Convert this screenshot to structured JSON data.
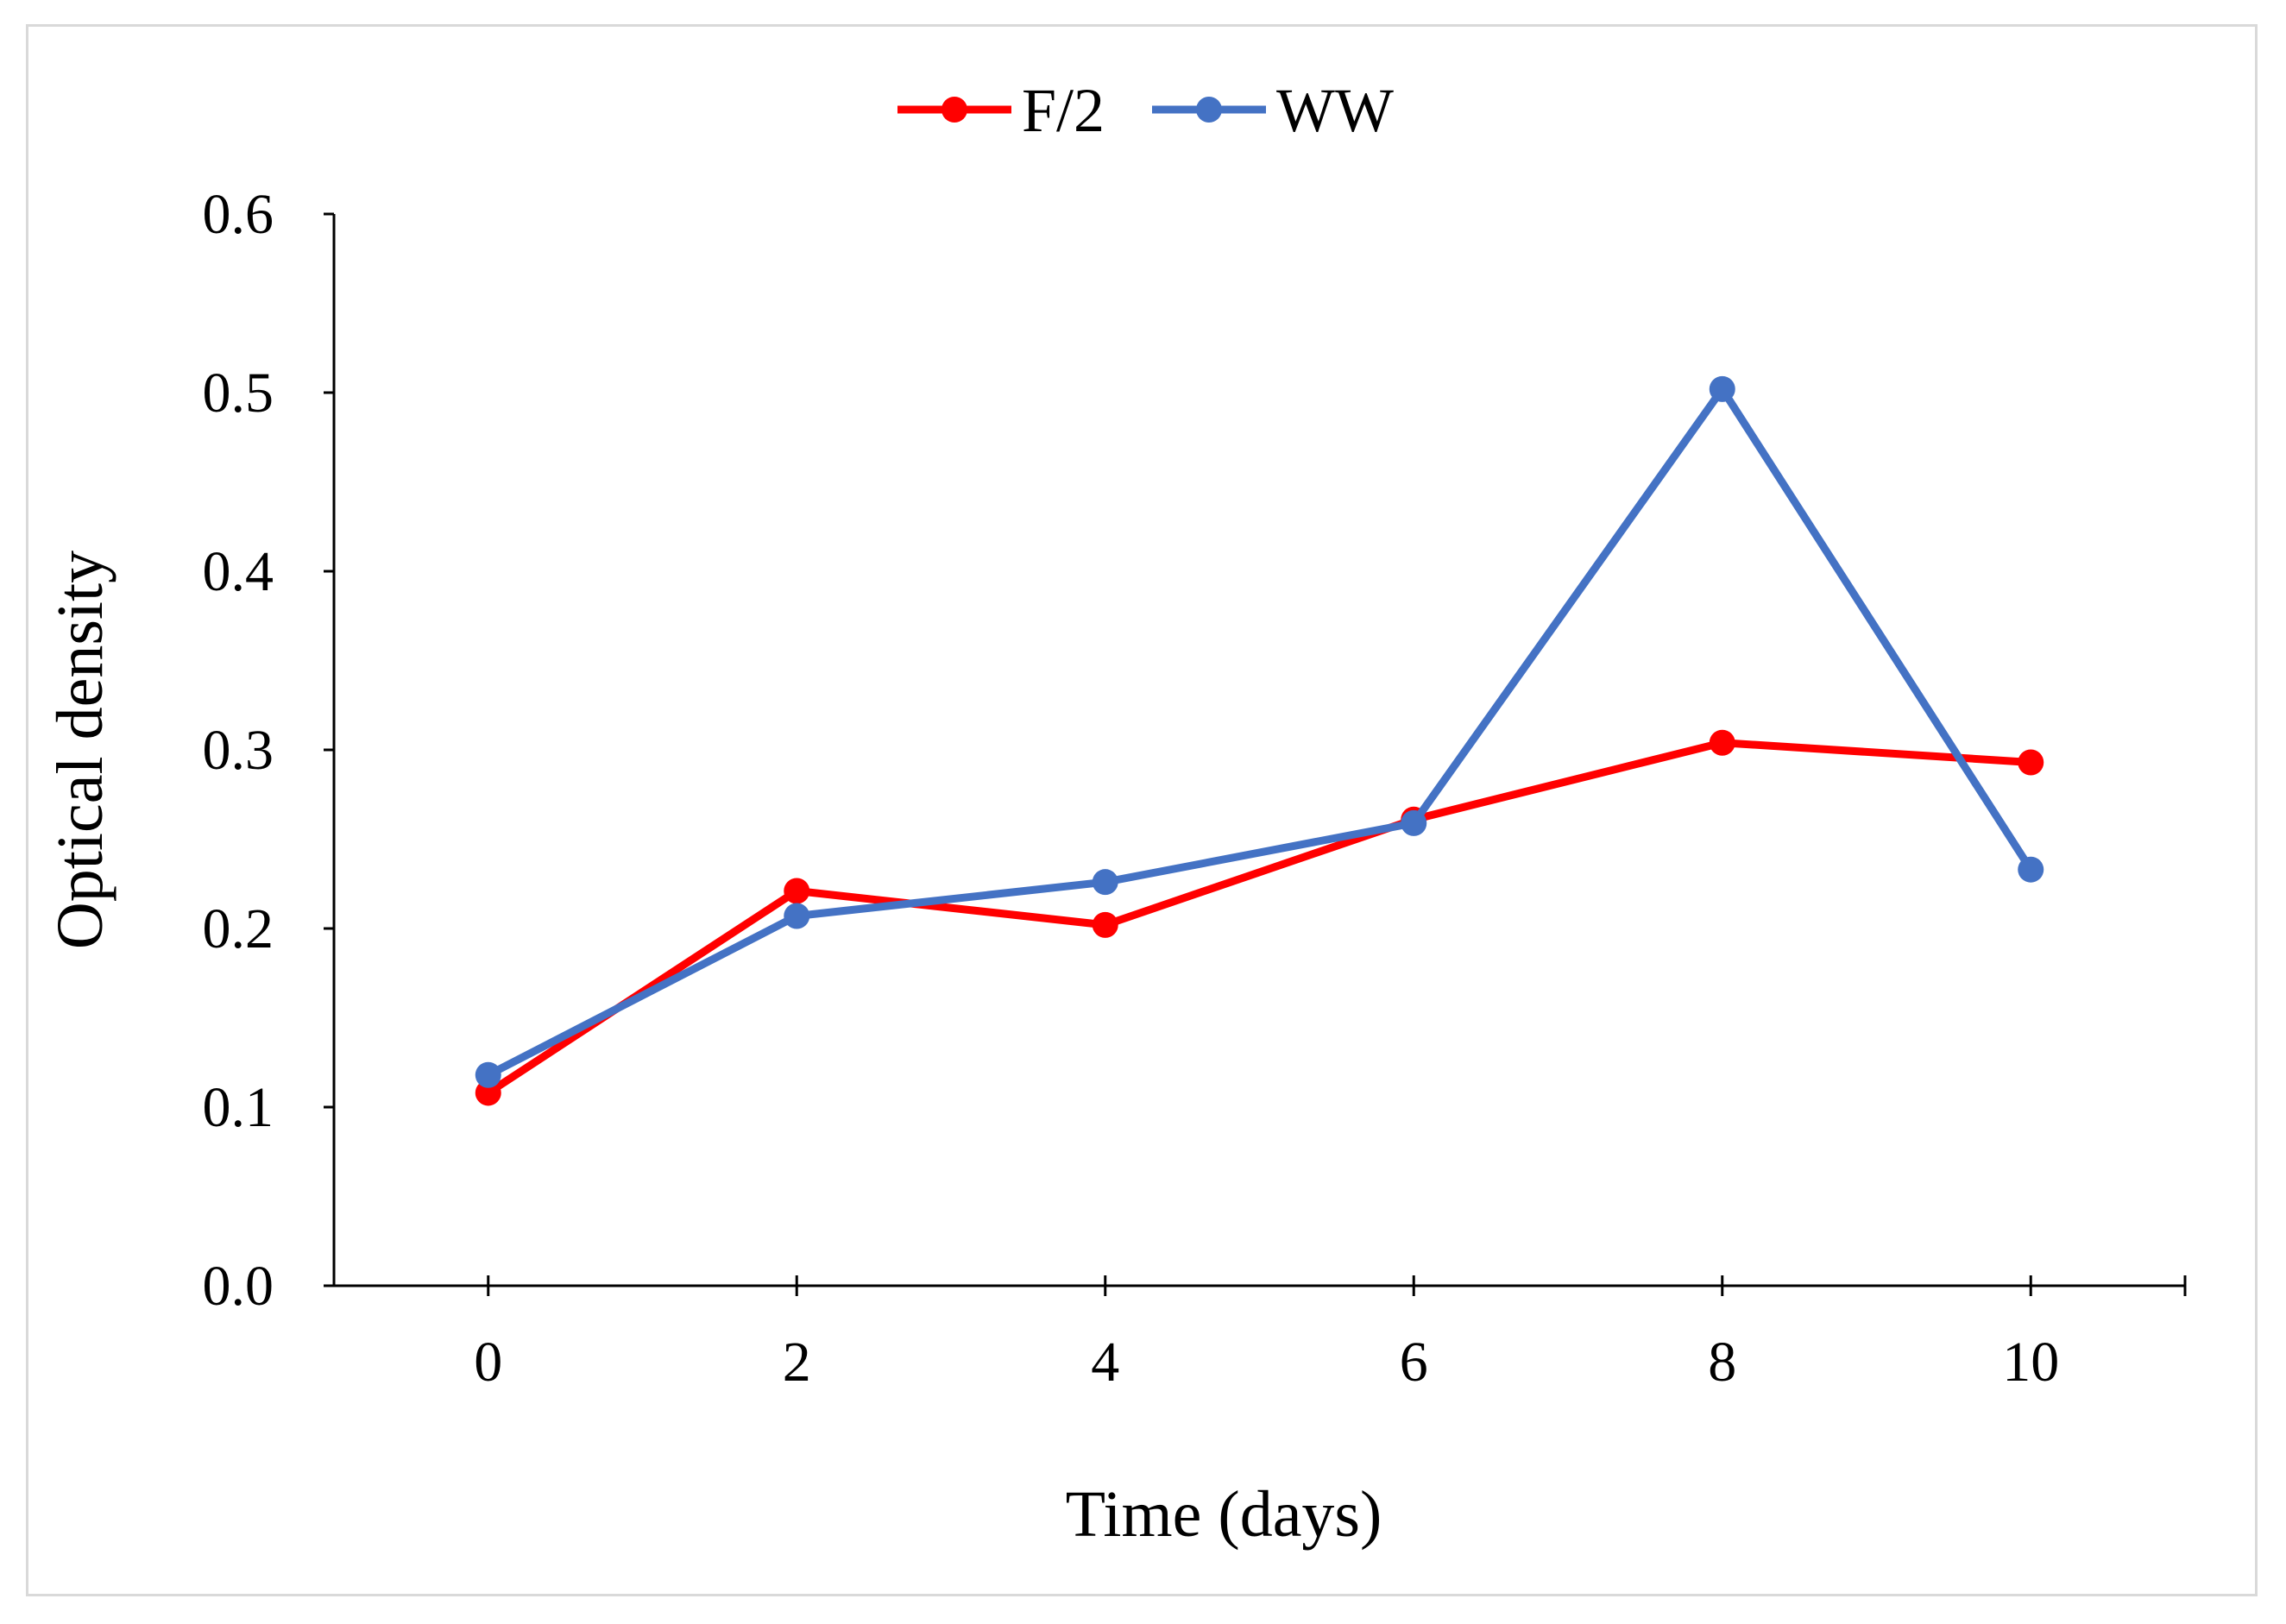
{
  "chart_data": {
    "type": "line",
    "title": "",
    "xlabel": "Time (days)",
    "ylabel": "Optical density",
    "x": [
      0,
      2,
      4,
      6,
      8,
      10
    ],
    "x_tick_labels": [
      "0",
      "2",
      "4",
      "6",
      "8",
      "10"
    ],
    "y_tick_labels": [
      "0.0",
      "0.1",
      "0.2",
      "0.3",
      "0.4",
      "0.5",
      "0.6"
    ],
    "xlim": [
      -1,
      11
    ],
    "ylim": [
      0,
      0.6
    ],
    "grid": false,
    "legend_position": "top-center",
    "series": [
      {
        "name": "F/2",
        "color": "#ff0000",
        "values": [
          0.108,
          0.221,
          0.202,
          0.261,
          0.304,
          0.293
        ]
      },
      {
        "name": "WW",
        "color": "#4472c4",
        "values": [
          0.118,
          0.207,
          0.226,
          0.259,
          0.502,
          0.233
        ]
      }
    ]
  }
}
